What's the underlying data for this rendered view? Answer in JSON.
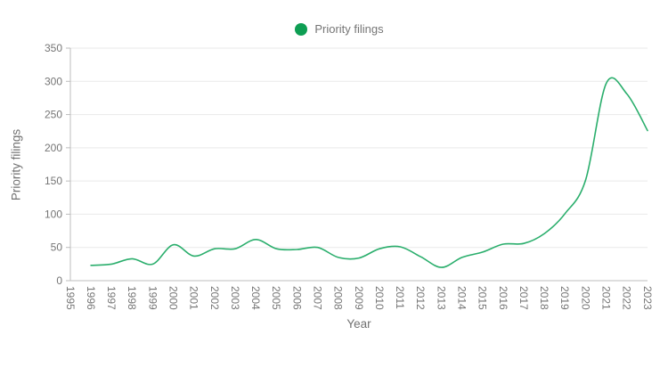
{
  "page": {
    "background": "#ffffff"
  },
  "colors": {
    "line": "#2aae6c",
    "legend_marker": "#0e9e53",
    "grid": "#e9e9e9",
    "axis": "#bdbdbd",
    "tick_text": "#757575",
    "title_text": "#717171",
    "background": "#ffffff"
  },
  "chart_data": {
    "type": "line",
    "smooth": true,
    "title": "",
    "xlabel": "Year",
    "ylabel": "Priority filings",
    "legend_position": "top-center",
    "grid": true,
    "x_tick_rotation_deg": 90,
    "ylim": [
      0,
      350
    ],
    "y_ticks": [
      0,
      50,
      100,
      150,
      200,
      250,
      300,
      350
    ],
    "categories": [
      1995,
      1996,
      1997,
      1998,
      1999,
      2000,
      2001,
      2002,
      2003,
      2004,
      2005,
      2006,
      2007,
      2008,
      2009,
      2010,
      2011,
      2012,
      2013,
      2014,
      2015,
      2016,
      2017,
      2018,
      2019,
      2020,
      2021,
      2022,
      2023
    ],
    "series": [
      {
        "name": "Priority filings",
        "color": "#2aae6c",
        "x": [
          1996,
          1997,
          1998,
          1999,
          2000,
          2001,
          2002,
          2003,
          2004,
          2005,
          2006,
          2007,
          2008,
          2009,
          2010,
          2011,
          2012,
          2013,
          2014,
          2015,
          2016,
          2017,
          2018,
          2019,
          2020,
          2021,
          2022,
          2023
        ],
        "values": [
          23,
          25,
          33,
          25,
          54,
          37,
          48,
          48,
          62,
          48,
          47,
          50,
          35,
          34,
          48,
          51,
          36,
          20,
          35,
          43,
          55,
          56,
          71,
          101,
          152,
          297,
          281,
          226
        ]
      }
    ]
  }
}
